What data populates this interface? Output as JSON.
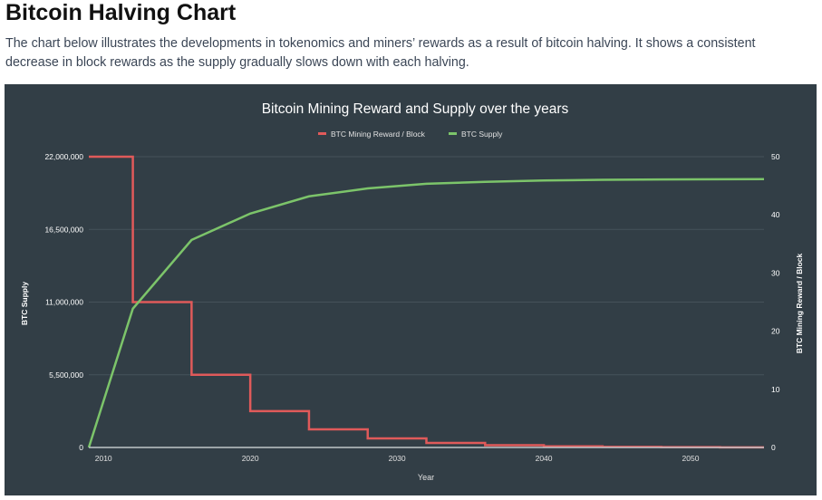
{
  "page": {
    "title": "Bitcoin Halving Chart",
    "description": "The chart below illustrates the developments in tokenomics and miners’ rewards as a result of bitcoin halving. It shows a consistent decrease in block rewards as the supply gradually slows down with each halving."
  },
  "chart_data": {
    "type": "line",
    "title": "Bitcoin Mining Reward and Supply over the years",
    "xlabel": "Year",
    "ylabel_left": "BTC Supply",
    "ylabel_right": "BTC Mining Reward / Block",
    "xlim": [
      2009,
      2055
    ],
    "ylim_left": [
      0,
      22000000
    ],
    "ylim_right": [
      0,
      50
    ],
    "x_ticks": [
      "2010",
      "2020",
      "2030",
      "2040",
      "2050"
    ],
    "y_left_ticks": [
      "0",
      "5,500,000",
      "11,000,000",
      "16,500,000",
      "22,000,000"
    ],
    "y_right_ticks": [
      "0",
      "10",
      "20",
      "30",
      "40",
      "50"
    ],
    "grid": true,
    "legend_position": "top",
    "background": "#323e46",
    "series": [
      {
        "name": "BTC Mining Reward / Block",
        "axis": "right",
        "step": true,
        "color": "#e05a5a",
        "x": [
          2009,
          2012,
          2016,
          2020,
          2024,
          2028,
          2032,
          2036,
          2040,
          2044,
          2048,
          2052,
          2055
        ],
        "y": [
          50,
          25,
          12.5,
          6.25,
          3.125,
          1.5625,
          0.78125,
          0.390625,
          0.1953125,
          0.09765625,
          0.048828125,
          0.0244140625,
          0.0244140625
        ]
      },
      {
        "name": "BTC Supply",
        "axis": "left",
        "step": false,
        "color": "#7cc46a",
        "x": [
          2009,
          2012,
          2016,
          2020,
          2024,
          2028,
          2032,
          2036,
          2040,
          2044,
          2048,
          2055
        ],
        "y": [
          0,
          10500000,
          15700000,
          17700000,
          19000000,
          19600000,
          19950000,
          20100000,
          20200000,
          20250000,
          20280000,
          20300000
        ]
      }
    ]
  }
}
